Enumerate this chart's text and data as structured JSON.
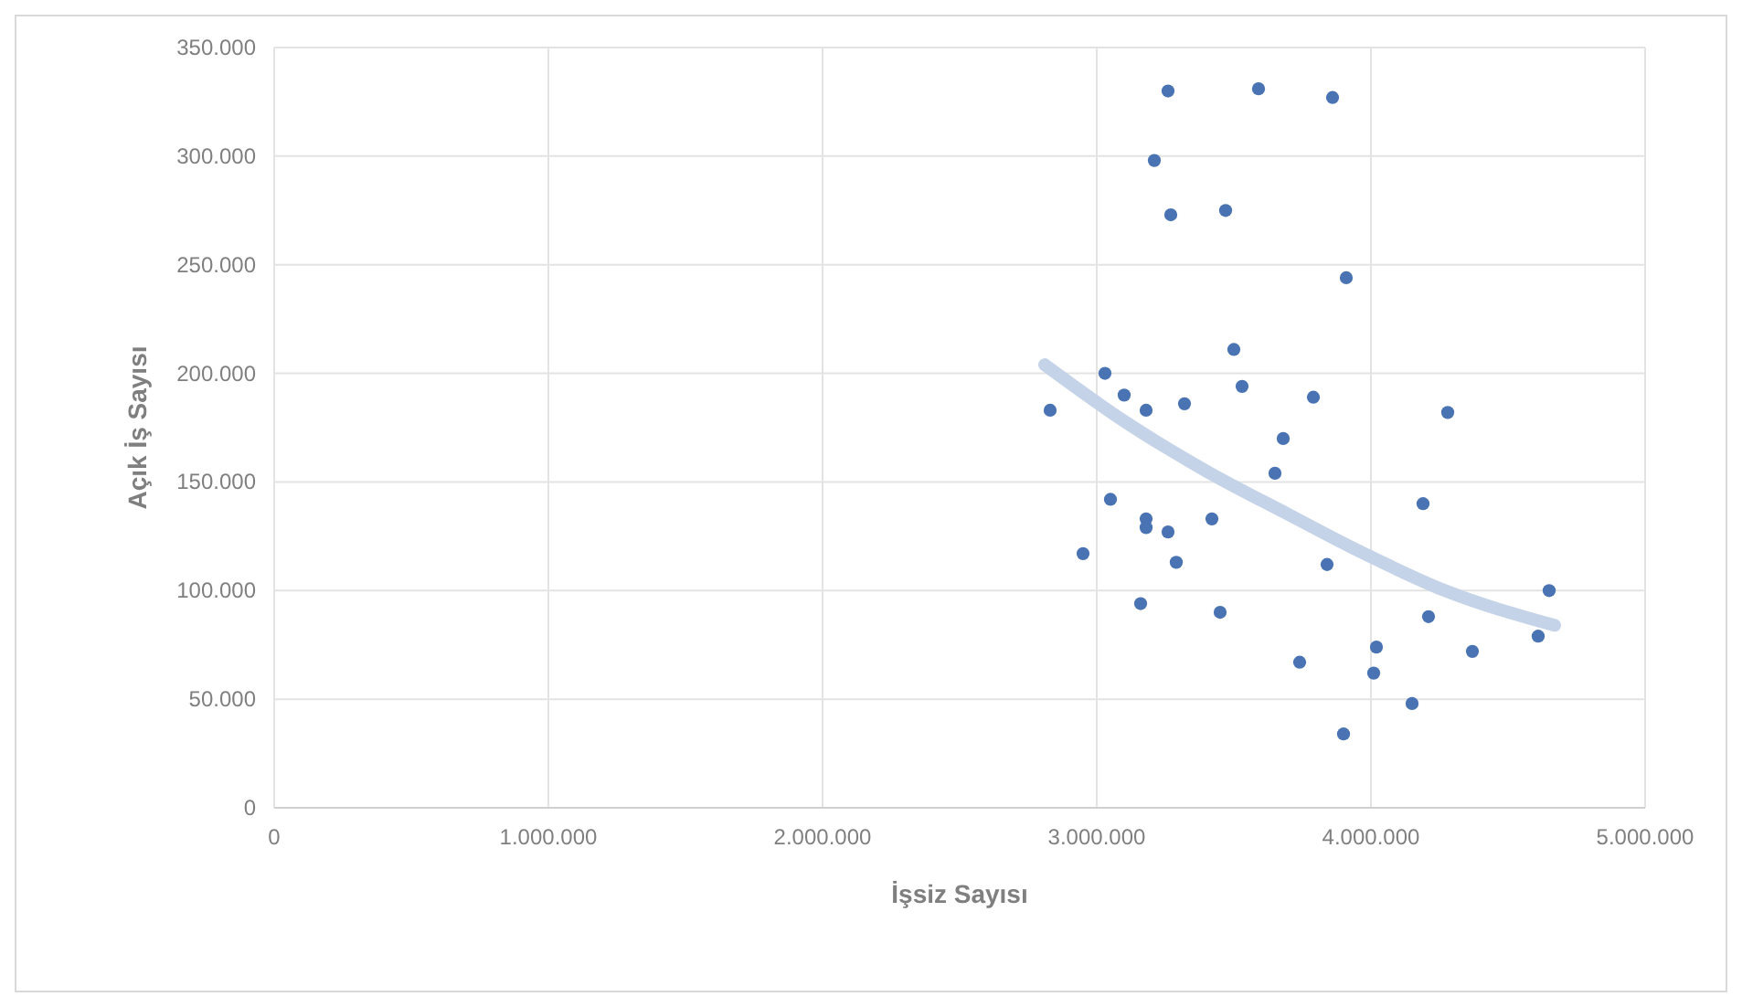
{
  "chart_data": {
    "type": "scatter",
    "xlabel": "İşsiz Sayısı",
    "ylabel": "Açık İş Sayısı",
    "xlim": [
      0,
      5000000
    ],
    "ylim": [
      0,
      350000
    ],
    "xticks": [
      {
        "value": 0,
        "label": "0"
      },
      {
        "value": 1000000,
        "label": "1.000.000"
      },
      {
        "value": 2000000,
        "label": "2.000.000"
      },
      {
        "value": 3000000,
        "label": "3.000.000"
      },
      {
        "value": 4000000,
        "label": "4.000.000"
      },
      {
        "value": 5000000,
        "label": "5.000.000"
      }
    ],
    "yticks": [
      {
        "value": 0,
        "label": "0"
      },
      {
        "value": 50000,
        "label": "50.000"
      },
      {
        "value": 100000,
        "label": "100.000"
      },
      {
        "value": 150000,
        "label": "150.000"
      },
      {
        "value": 200000,
        "label": "200.000"
      },
      {
        "value": 250000,
        "label": "250.000"
      },
      {
        "value": 300000,
        "label": "300.000"
      },
      {
        "value": 350000,
        "label": "350.000"
      }
    ],
    "grid": true,
    "marker": "circle",
    "series": [
      {
        "color": "#4a73b3",
        "x": [
          2830000,
          2950000,
          3030000,
          3050000,
          3100000,
          3160000,
          3180000,
          3180000,
          3180000,
          3210000,
          3260000,
          3260000,
          3270000,
          3290000,
          3320000,
          3420000,
          3450000,
          3470000,
          3500000,
          3530000,
          3590000,
          3650000,
          3680000,
          3740000,
          3790000,
          3840000,
          3860000,
          3900000,
          3910000,
          4010000,
          4020000,
          4150000,
          4190000,
          4210000,
          4280000,
          4370000,
          4610000,
          4650000
        ],
        "values": [
          183000,
          117000,
          200000,
          142000,
          190000,
          94000,
          183000,
          133000,
          129000,
          298000,
          330000,
          127000,
          273000,
          113000,
          186000,
          133000,
          90000,
          275000,
          211000,
          194000,
          331000,
          154000,
          170000,
          67000,
          189000,
          112000,
          327000,
          34000,
          244000,
          62000,
          74000,
          48000,
          140000,
          88000,
          182000,
          72000,
          79000,
          100000
        ]
      },
      {
        "type": "line",
        "color": "#c5d3e8",
        "marker": "none",
        "x": [
          2810000,
          3100000,
          3400000,
          3700000,
          3960000,
          4270000,
          4670000
        ],
        "values": [
          204000,
          178000,
          155000,
          135000,
          118000,
          100000,
          84000
        ]
      }
    ]
  }
}
